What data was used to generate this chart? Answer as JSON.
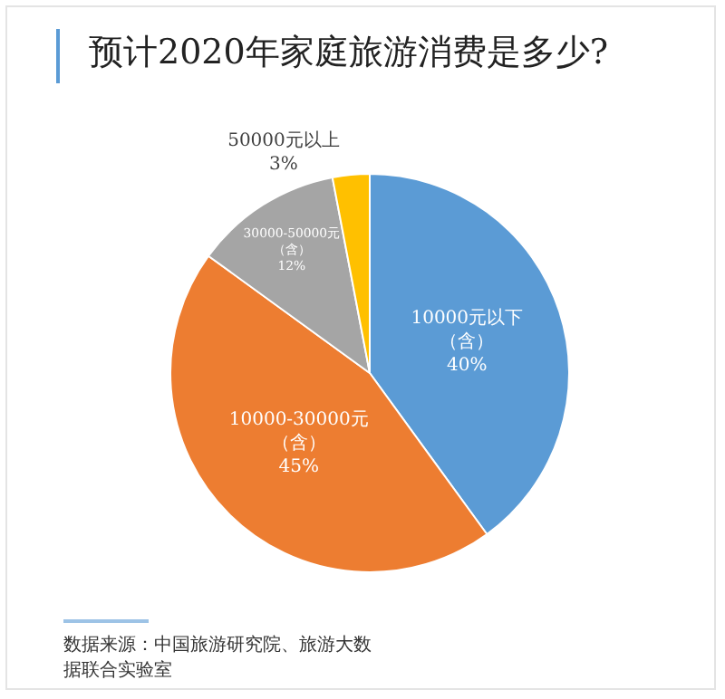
{
  "chart_data": {
    "type": "pie",
    "title": "预计2020年家庭旅游消费是多少?",
    "categories": [
      "10000元以下（含）",
      "10000-30000元（含）",
      "30000-50000元（含）",
      "50000元以上"
    ],
    "values": [
      40,
      45,
      12,
      3
    ],
    "value_labels": [
      "40%",
      "45%",
      "12%",
      "3%"
    ],
    "colors": [
      "#5b9bd5",
      "#ed7d31",
      "#a5a5a5",
      "#ffc000"
    ],
    "legend": false,
    "annotations": [
      "数据来源：中国旅游研究院、旅游大数据联合实验室"
    ]
  }
}
